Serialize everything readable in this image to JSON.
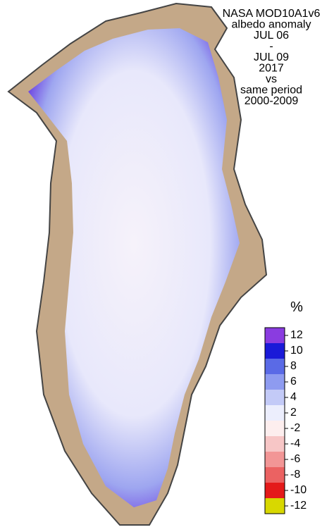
{
  "title_lines": [
    "NASA MOD10A1v6",
    "albedo anomaly",
    "JUL 06",
    "-",
    "JUL 09",
    "2017",
    "vs",
    "same period",
    "2000-2009"
  ],
  "legend": {
    "unit": "%",
    "items": [
      {
        "label": "12",
        "color": "#8a3ce0"
      },
      {
        "label": "10",
        "color": "#1a1ad8"
      },
      {
        "label": "8",
        "color": "#5a6ae6"
      },
      {
        "label": "6",
        "color": "#8e9bf0"
      },
      {
        "label": "4",
        "color": "#c3caf7"
      },
      {
        "label": "2",
        "color": "#eceefd"
      },
      {
        "label": "-2",
        "color": "#fdeeee"
      },
      {
        "label": "-4",
        "color": "#f7c6c6"
      },
      {
        "label": "-6",
        "color": "#f29696"
      },
      {
        "label": "-8",
        "color": "#eb6262"
      },
      {
        "label": "-10",
        "color": "#e41a1a"
      },
      {
        "label": "-12",
        "color": "#d8d800"
      }
    ]
  }
}
